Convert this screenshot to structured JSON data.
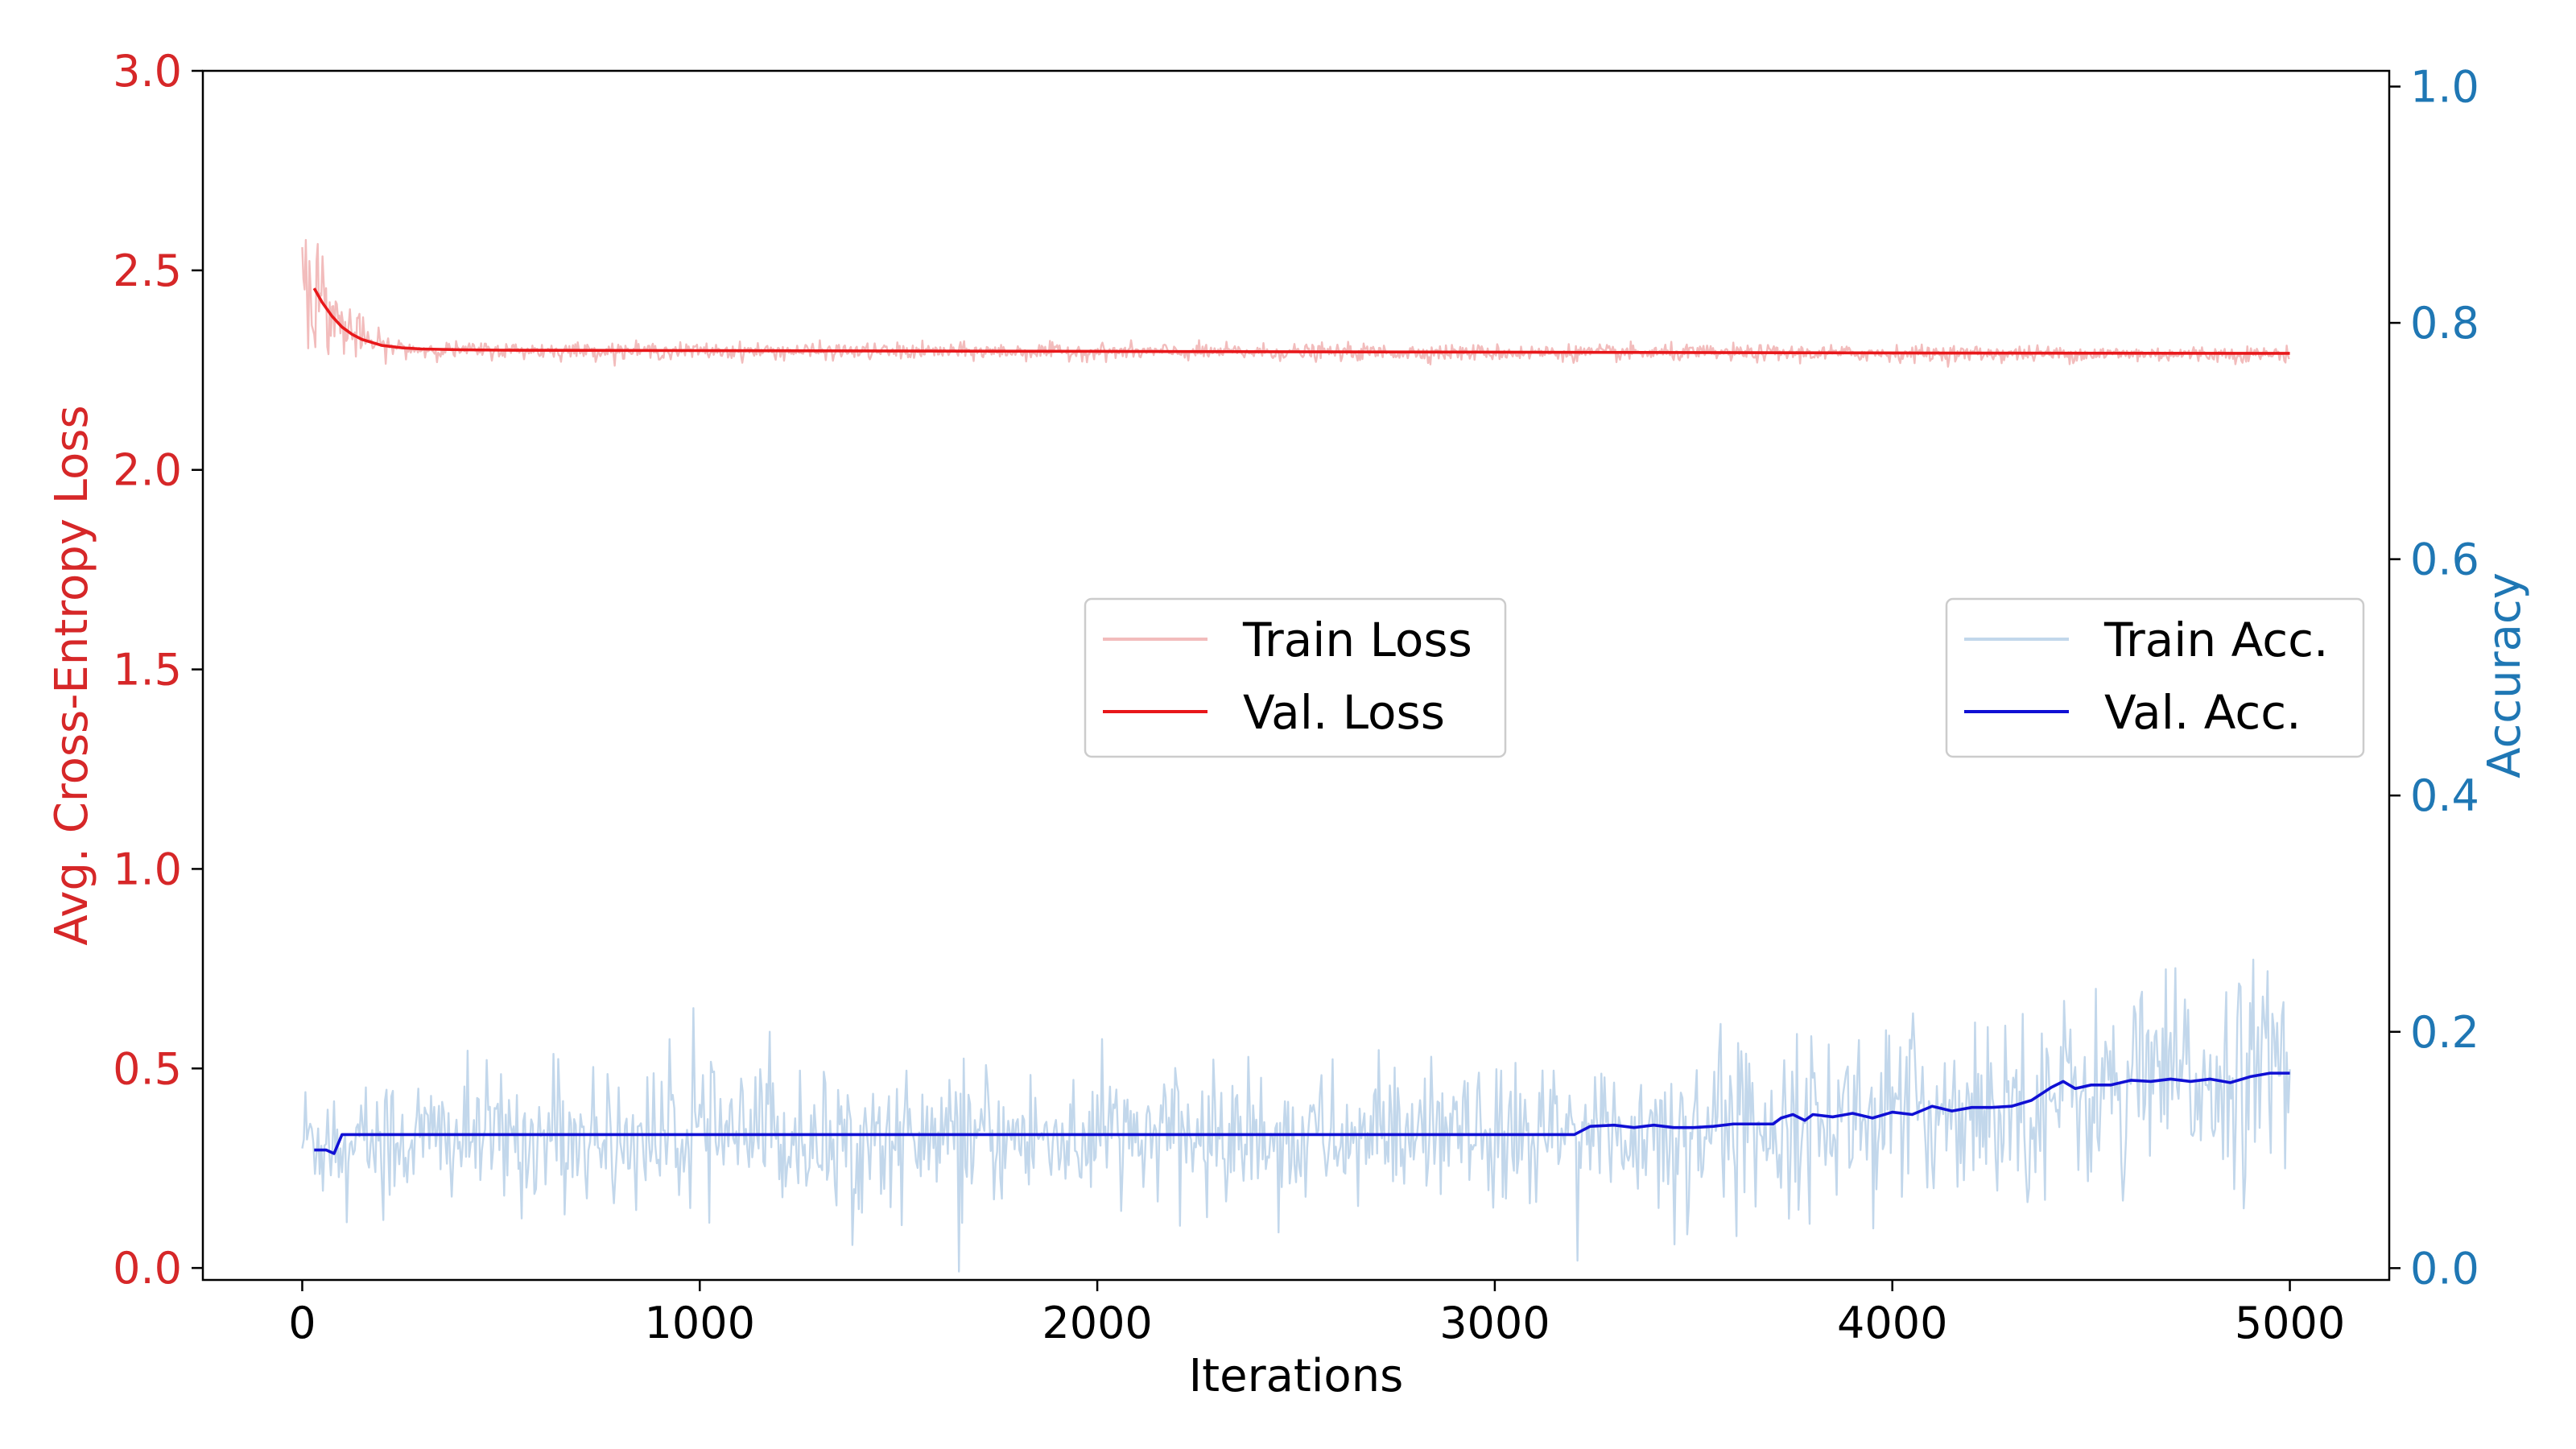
{
  "chart_data": {
    "type": "line",
    "xlabel": "Iterations",
    "ylabel_left": "Avg. Cross-Entropy Loss",
    "ylabel_right": "Accuracy",
    "xlim": [
      -250,
      5250
    ],
    "ylim_left": [
      -0.03,
      3.0
    ],
    "ylim_right": [
      -0.01,
      1.0133
    ],
    "x_ticks": [
      0,
      1000,
      2000,
      3000,
      4000,
      5000
    ],
    "x_tick_labels": [
      "0",
      "1000",
      "2000",
      "3000",
      "4000",
      "5000"
    ],
    "y_left_ticks": [
      0.0,
      0.5,
      1.0,
      1.5,
      2.0,
      2.5,
      3.0
    ],
    "y_left_tick_labels": [
      "0.0",
      "0.5",
      "1.0",
      "1.5",
      "2.0",
      "2.5",
      "3.0"
    ],
    "y_right_ticks": [
      0.0,
      0.2,
      0.4,
      0.6,
      0.8,
      1.0
    ],
    "y_right_tick_labels": [
      "0.0",
      "0.2",
      "0.4",
      "0.6",
      "0.8",
      "1.0"
    ],
    "grid": false,
    "colors": {
      "left_axis": "#d62728",
      "right_axis": "#1f77b4",
      "train_loss": "#f2bcbc",
      "val_loss": "#e8171a",
      "train_acc": "#c2d7eb",
      "val_acc": "#1010d4"
    },
    "legends": [
      {
        "placement": "center",
        "entries": [
          "Train Loss",
          "Val. Loss"
        ]
      },
      {
        "placement": "center-right",
        "entries": [
          "Train Acc.",
          "Val. Acc."
        ]
      }
    ],
    "series": [
      {
        "name": "Train Loss",
        "axis": "left",
        "style": "noisy",
        "x": [
          0,
          25,
          50,
          75,
          100,
          150,
          200,
          250,
          300,
          400,
          1000,
          2000,
          3000,
          4000,
          5000
        ],
        "values": [
          2.52,
          2.47,
          2.42,
          2.39,
          2.36,
          2.33,
          2.31,
          2.305,
          2.302,
          2.3,
          2.298,
          2.296,
          2.294,
          2.292,
          2.29
        ],
        "noise": [
          0.1,
          0.08,
          0.07,
          0.05,
          0.04,
          0.025,
          0.015,
          0.012,
          0.01,
          0.01,
          0.01,
          0.01,
          0.01,
          0.01,
          0.01
        ]
      },
      {
        "name": "Val. Loss",
        "axis": "left",
        "x": [
          30,
          50,
          75,
          100,
          125,
          150,
          200,
          250,
          300,
          400,
          500,
          1000,
          2000,
          3000,
          4000,
          5000
        ],
        "values": [
          2.455,
          2.42,
          2.385,
          2.358,
          2.34,
          2.327,
          2.312,
          2.306,
          2.303,
          2.301,
          2.3,
          2.299,
          2.297,
          2.295,
          2.293,
          2.292
        ]
      },
      {
        "name": "Train Acc.",
        "axis": "right",
        "style": "noisy",
        "x": [
          0,
          500,
          1000,
          1500,
          2000,
          2500,
          3000,
          3200,
          3500,
          4000,
          4300,
          4500,
          5000
        ],
        "values": [
          0.11,
          0.11,
          0.11,
          0.11,
          0.11,
          0.11,
          0.11,
          0.112,
          0.12,
          0.13,
          0.14,
          0.15,
          0.17
        ],
        "noise": [
          0.028,
          0.028,
          0.028,
          0.028,
          0.028,
          0.028,
          0.028,
          0.03,
          0.032,
          0.035,
          0.038,
          0.04,
          0.045
        ]
      },
      {
        "name": "Val. Acc.",
        "axis": "right",
        "x": [
          30,
          60,
          80,
          100,
          300,
          500,
          1000,
          1500,
          2000,
          2500,
          3000,
          3200,
          3240,
          3300,
          3350,
          3400,
          3450,
          3500,
          3550,
          3600,
          3650,
          3700,
          3720,
          3750,
          3780,
          3800,
          3850,
          3900,
          3950,
          4000,
          4050,
          4100,
          4150,
          4200,
          4250,
          4300,
          4350,
          4400,
          4430,
          4460,
          4500,
          4550,
          4600,
          4650,
          4700,
          4750,
          4800,
          4850,
          4900,
          4950,
          5000
        ],
        "values": [
          0.1,
          0.1,
          0.097,
          0.113,
          0.113,
          0.113,
          0.113,
          0.113,
          0.113,
          0.113,
          0.113,
          0.113,
          0.12,
          0.121,
          0.119,
          0.121,
          0.119,
          0.119,
          0.12,
          0.122,
          0.122,
          0.122,
          0.127,
          0.13,
          0.125,
          0.13,
          0.128,
          0.131,
          0.127,
          0.132,
          0.13,
          0.137,
          0.133,
          0.136,
          0.136,
          0.137,
          0.142,
          0.153,
          0.158,
          0.152,
          0.155,
          0.155,
          0.159,
          0.158,
          0.16,
          0.158,
          0.16,
          0.157,
          0.162,
          0.165,
          0.165
        ]
      }
    ]
  }
}
